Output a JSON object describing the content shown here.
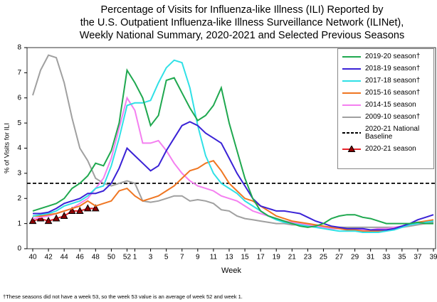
{
  "chart_data": {
    "type": "line",
    "title_lines": [
      "Percentage of Visits for Influenza-like Illness (ILI) Reported by",
      "the U.S. Outpatient Influenza-like Illness Surveillance Network (ILINet),",
      "Weekly National Summary, 2020-2021 and Selected Previous Seasons"
    ],
    "x_label": "Week",
    "y_label": "% of Visits for ILI",
    "footnote": "†These seasons did not have a week 53, so the week 53 value is an average of week 52 and week 1.",
    "categories": [
      "40",
      null,
      "42",
      null,
      "44",
      null,
      "46",
      null,
      "48",
      null,
      "50",
      null,
      "52",
      "1",
      null,
      "3",
      null,
      "5",
      null,
      "7",
      null,
      "9",
      null,
      "11",
      null,
      "13",
      null,
      "15",
      null,
      "17",
      null,
      "19",
      null,
      "21",
      null,
      "23",
      null,
      "25",
      null,
      "27",
      null,
      "29",
      null,
      "31",
      null,
      "33",
      null,
      "35",
      null,
      "37",
      null,
      "39"
    ],
    "ylim": [
      0,
      8
    ],
    "yticks": [
      0,
      1,
      2,
      3,
      4,
      5,
      6,
      7,
      8
    ],
    "baseline": {
      "name": "2020-21 National Baseline",
      "value": 2.6,
      "color": "#000000"
    },
    "series": [
      {
        "name": "2019-20 season†",
        "color": "#1fa84f",
        "values": [
          1.5,
          1.6,
          1.7,
          1.8,
          2.0,
          2.4,
          2.6,
          2.9,
          3.4,
          3.3,
          3.9,
          5.0,
          7.1,
          6.6,
          6.0,
          4.9,
          5.3,
          6.7,
          6.8,
          6.2,
          5.6,
          5.1,
          5.3,
          5.7,
          6.4,
          5.0,
          3.9,
          2.8,
          2.0,
          1.5,
          1.3,
          1.2,
          1.1,
          1.0,
          0.9,
          0.85,
          0.9,
          1.0,
          1.2,
          1.3,
          1.35,
          1.35,
          1.25,
          1.2,
          1.1,
          1.0,
          1.0,
          1.0,
          1.0,
          1.05,
          1.0,
          1.0
        ]
      },
      {
        "name": "2018-19 season†",
        "color": "#3a22d6",
        "values": [
          1.4,
          1.4,
          1.45,
          1.6,
          1.8,
          1.9,
          2.0,
          2.2,
          2.2,
          2.3,
          2.6,
          3.2,
          4.0,
          3.7,
          3.4,
          3.1,
          3.3,
          3.9,
          4.4,
          4.9,
          5.05,
          4.9,
          4.6,
          4.4,
          4.2,
          3.6,
          3.0,
          2.5,
          2.0,
          1.7,
          1.6,
          1.5,
          1.5,
          1.45,
          1.4,
          1.25,
          1.1,
          1.0,
          0.9,
          0.85,
          0.8,
          0.8,
          0.8,
          0.75,
          0.75,
          0.75,
          0.8,
          0.9,
          1.0,
          1.15,
          1.25,
          1.35
        ]
      },
      {
        "name": "2017-18 season†",
        "color": "#2fe0e6",
        "values": [
          1.3,
          1.35,
          1.4,
          1.5,
          1.7,
          1.8,
          1.9,
          2.1,
          2.4,
          2.5,
          3.3,
          4.4,
          5.7,
          5.8,
          5.8,
          5.9,
          6.6,
          7.2,
          7.5,
          7.4,
          6.4,
          4.9,
          3.7,
          3.0,
          2.6,
          2.4,
          2.2,
          1.9,
          1.7,
          1.5,
          1.3,
          1.15,
          1.05,
          1.0,
          0.95,
          0.9,
          0.85,
          0.8,
          0.75,
          0.7,
          0.7,
          0.7,
          0.65,
          0.65,
          0.65,
          0.7,
          0.75,
          0.85,
          0.95,
          1.0,
          1.05,
          1.1
        ]
      },
      {
        "name": "2015-16 season†",
        "color": "#ef7622",
        "values": [
          1.3,
          1.3,
          1.35,
          1.4,
          1.5,
          1.6,
          1.7,
          1.9,
          1.7,
          1.8,
          1.9,
          2.3,
          2.4,
          2.1,
          1.9,
          2.0,
          2.1,
          2.3,
          2.5,
          2.8,
          3.1,
          3.2,
          3.4,
          3.5,
          3.1,
          2.6,
          2.3,
          2.0,
          1.9,
          1.7,
          1.5,
          1.3,
          1.2,
          1.1,
          1.05,
          1.0,
          0.95,
          0.9,
          0.85,
          0.8,
          0.75,
          0.75,
          0.7,
          0.7,
          0.7,
          0.75,
          0.8,
          0.9,
          1.0,
          1.05,
          1.1,
          1.15
        ]
      },
      {
        "name": "2014-15 season",
        "color": "#f47ff0",
        "values": [
          1.2,
          1.25,
          1.3,
          1.4,
          1.5,
          1.6,
          1.8,
          2.0,
          2.4,
          2.8,
          3.6,
          4.8,
          6.0,
          5.5,
          4.2,
          4.2,
          4.3,
          3.9,
          3.4,
          3.0,
          2.7,
          2.5,
          2.4,
          2.3,
          2.1,
          2.0,
          1.9,
          1.7,
          1.5,
          1.4,
          1.3,
          1.2,
          1.1,
          1.05,
          1.0,
          0.95,
          0.9,
          0.85,
          0.8,
          0.8,
          0.75,
          0.75,
          0.75,
          0.75,
          0.8,
          0.8,
          0.85,
          0.9,
          0.95,
          1.0,
          1.05,
          1.1
        ]
      },
      {
        "name": "2009-10 season†",
        "color": "#a0a0a0",
        "values": [
          6.1,
          7.1,
          7.7,
          7.6,
          6.6,
          5.2,
          4.0,
          3.5,
          2.8,
          2.6,
          2.5,
          2.6,
          2.7,
          2.6,
          1.9,
          1.85,
          1.9,
          2.0,
          2.1,
          2.1,
          1.9,
          1.95,
          1.9,
          1.8,
          1.55,
          1.5,
          1.3,
          1.2,
          1.15,
          1.1,
          1.05,
          1.0,
          1.0,
          0.95,
          0.95,
          0.9,
          0.9,
          0.85,
          0.85,
          0.85,
          0.85,
          0.85,
          0.85,
          0.85,
          0.85,
          0.85,
          0.85,
          0.85,
          0.9,
          0.95,
          1.0,
          1.05
        ]
      },
      {
        "name": "2020-21 season",
        "color": "#e8232a",
        "marker": "triangle",
        "marker_color": "#8b0000",
        "values": [
          1.1,
          1.2,
          1.1,
          1.2,
          1.3,
          1.5,
          1.5,
          1.6,
          1.6,
          null,
          null,
          null,
          null,
          null,
          null,
          null,
          null,
          null,
          null,
          null,
          null,
          null,
          null,
          null,
          null,
          null,
          null,
          null,
          null,
          null,
          null,
          null,
          null,
          null,
          null,
          null,
          null,
          null,
          null,
          null,
          null,
          null,
          null,
          null,
          null,
          null,
          null,
          null,
          null,
          null,
          null,
          null
        ]
      }
    ]
  }
}
